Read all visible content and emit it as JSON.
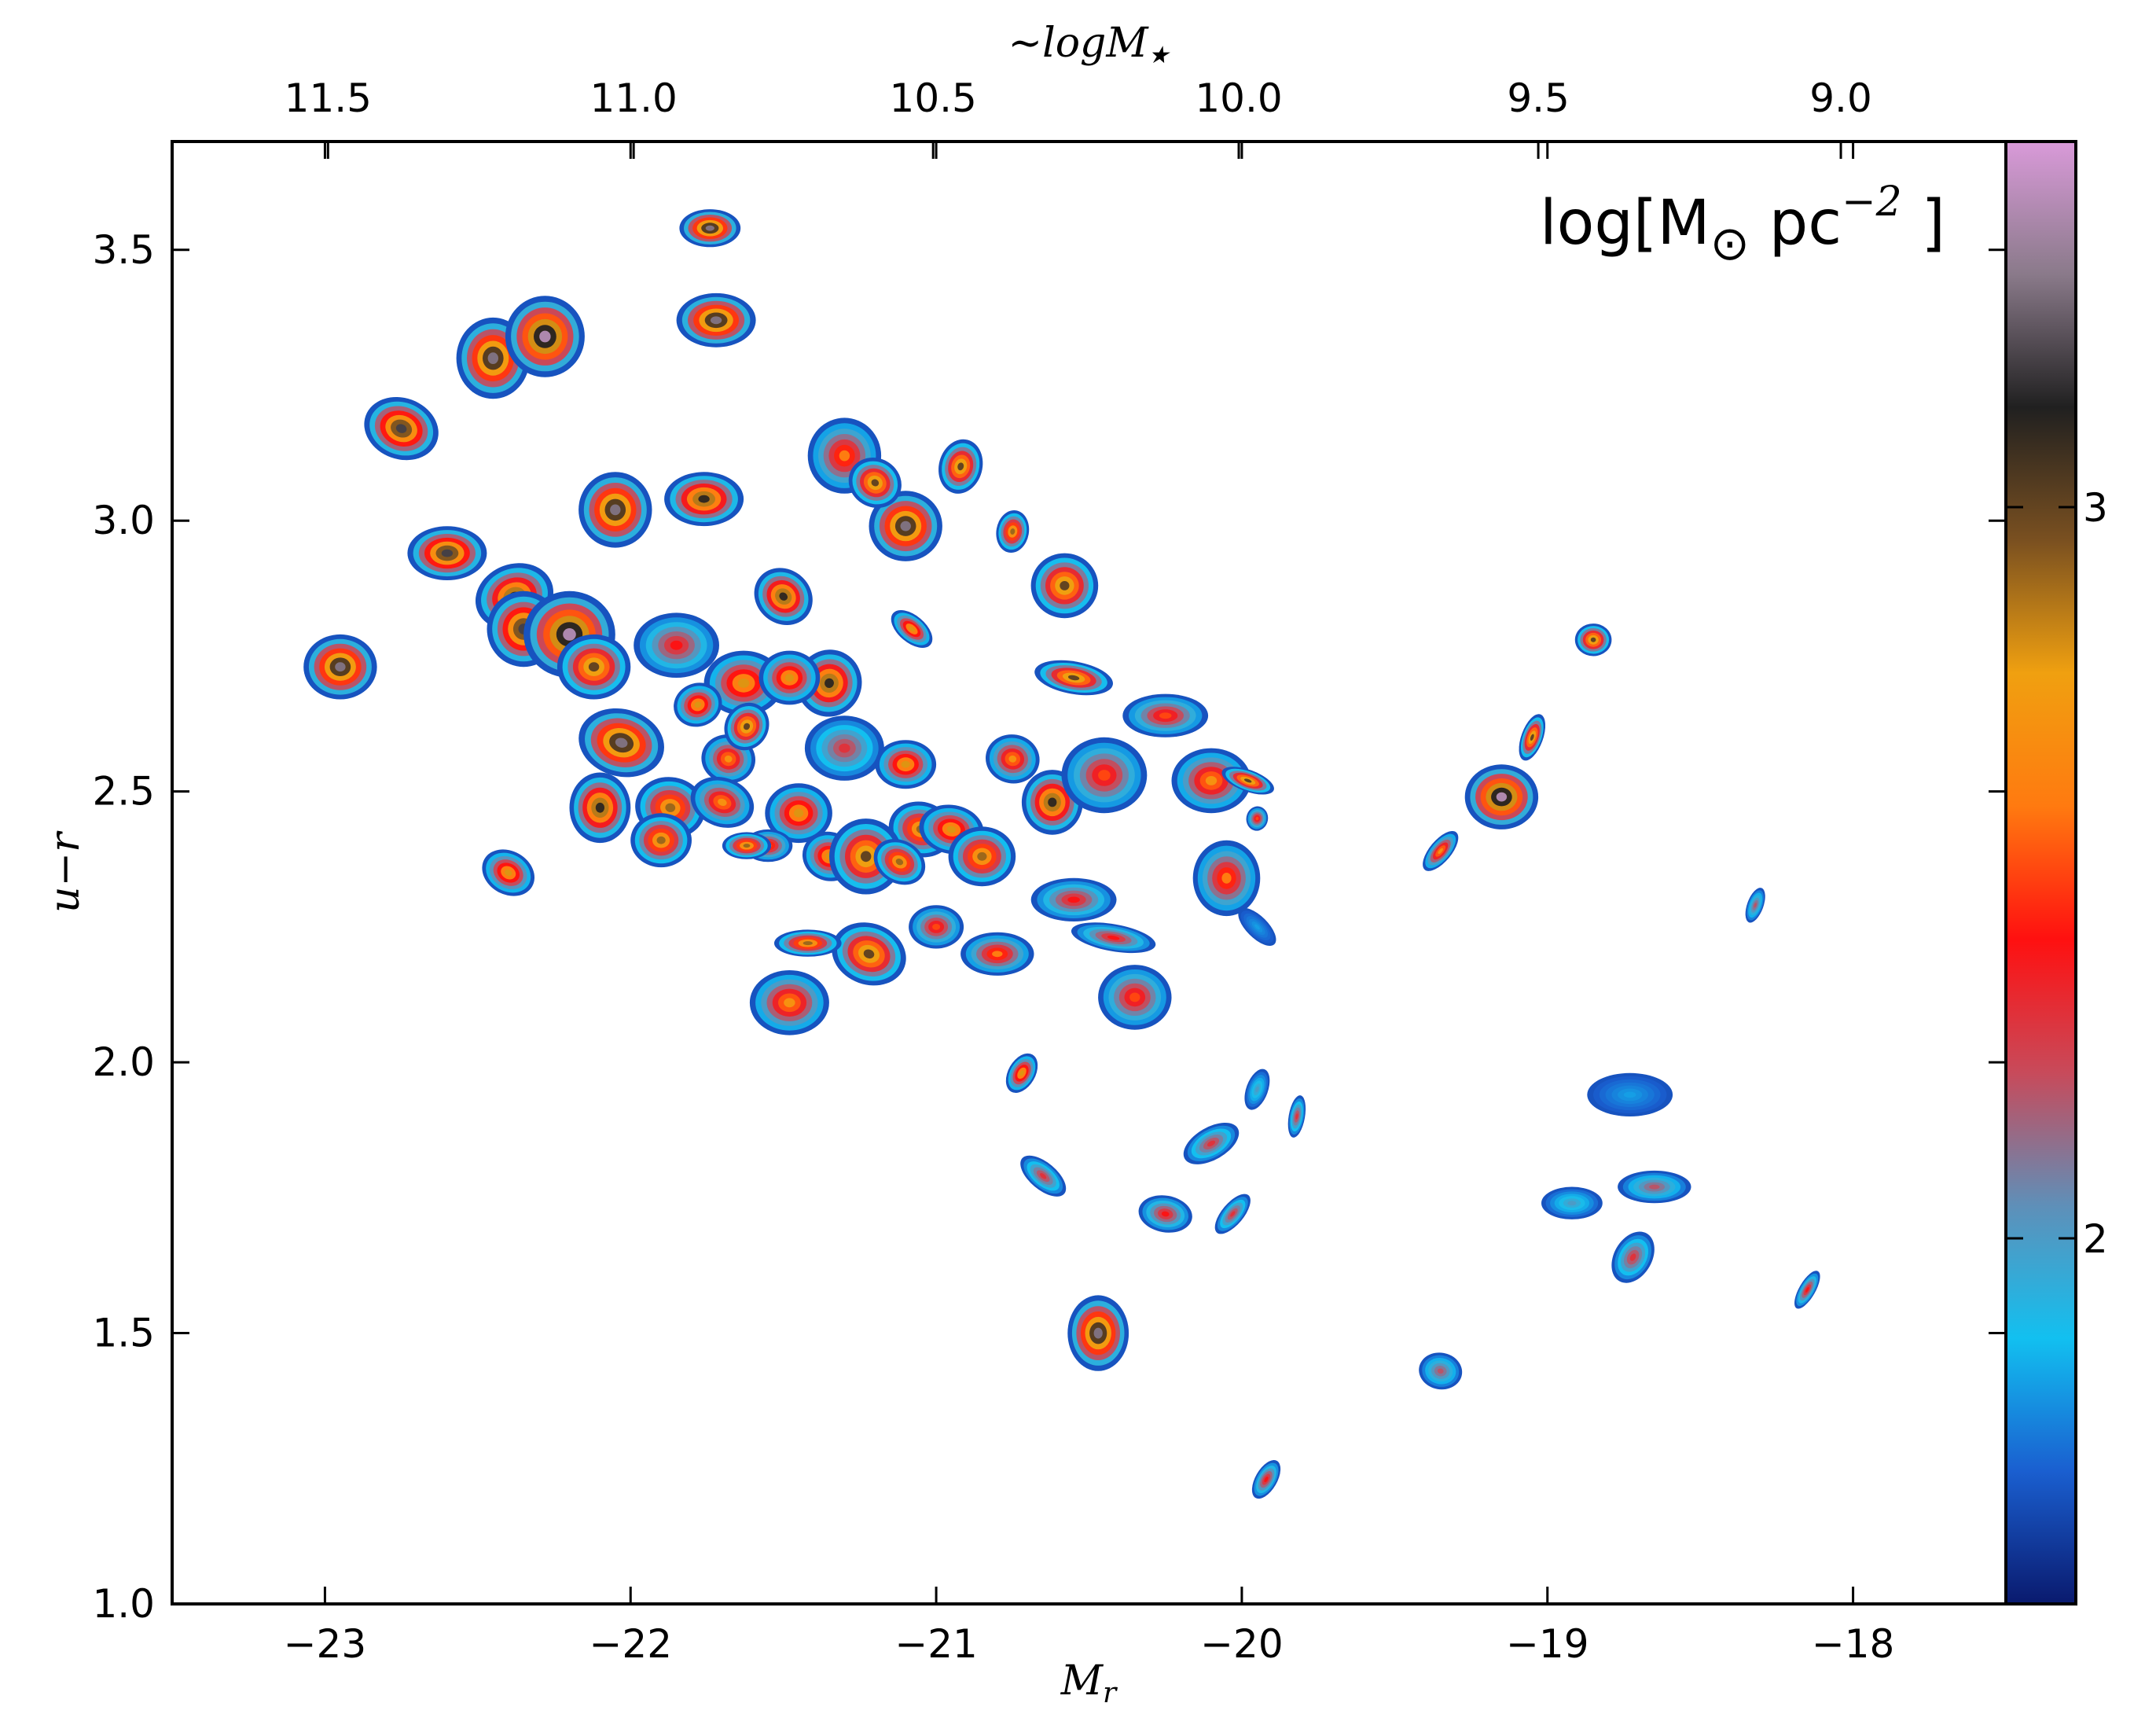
{
  "chart_data": {
    "type": "scatter",
    "title": "",
    "xlabel": "M_r",
    "ylabel": "u−r",
    "top_xlabel": "~logM★",
    "xlim": [
      -23.5,
      -17.5
    ],
    "ylim": [
      1.0,
      3.7
    ],
    "x_inverted": false,
    "xticks": [
      {
        "value": -23,
        "label": "−23"
      },
      {
        "value": -22,
        "label": "−22"
      },
      {
        "value": -21,
        "label": "−21"
      },
      {
        "value": -20,
        "label": "−20"
      },
      {
        "value": -19,
        "label": "−19"
      },
      {
        "value": -18,
        "label": "−18"
      }
    ],
    "yticks": [
      {
        "value": 1.0,
        "label": "1.0"
      },
      {
        "value": 1.5,
        "label": "1.5"
      },
      {
        "value": 2.0,
        "label": "2.0"
      },
      {
        "value": 2.5,
        "label": "2.5"
      },
      {
        "value": 3.0,
        "label": "3.0"
      },
      {
        "value": 3.5,
        "label": "3.5"
      }
    ],
    "top_xticks": [
      {
        "value": -22.99,
        "label": "11.5"
      },
      {
        "value": -21.99,
        "label": "11.0"
      },
      {
        "value": -21.01,
        "label": "10.5"
      },
      {
        "value": -20.01,
        "label": "10.0"
      },
      {
        "value": -19.03,
        "label": "9.5"
      },
      {
        "value": -18.04,
        "label": "9.0"
      }
    ],
    "colorbar": {
      "label": "log[M⊙ pc⁻²]",
      "range": [
        1.5,
        3.5
      ],
      "ticks": [
        {
          "value": 2,
          "label": "2"
        },
        {
          "value": 3,
          "label": "3"
        }
      ],
      "colormap_stops": [
        "#0a1a6e",
        "#1a5fd0",
        "#12c0f0",
        "#5f8fb8",
        "#c84a5a",
        "#ff1010",
        "#ff7a10",
        "#f0a010",
        "#7a5020",
        "#202020",
        "#8a7a8a",
        "#d99ad9"
      ]
    },
    "points": [
      {
        "x": -22.95,
        "y": 2.73,
        "peak": 3.3,
        "w": 0.24,
        "h": 0.12,
        "rot": 0
      },
      {
        "x": -22.75,
        "y": 3.17,
        "peak": 3.2,
        "w": 0.2,
        "h": 0.14,
        "rot": 70
      },
      {
        "x": -22.6,
        "y": 2.94,
        "peak": 3.2,
        "w": 0.26,
        "h": 0.1,
        "rot": 0
      },
      {
        "x": -22.45,
        "y": 3.3,
        "peak": 3.3,
        "w": 0.24,
        "h": 0.15,
        "rot": 0
      },
      {
        "x": -22.28,
        "y": 3.34,
        "peak": 3.4,
        "w": 0.26,
        "h": 0.15,
        "rot": 0
      },
      {
        "x": -22.38,
        "y": 2.86,
        "peak": 3.1,
        "w": 0.26,
        "h": 0.12,
        "rot": 20
      },
      {
        "x": -22.35,
        "y": 2.8,
        "peak": 3.2,
        "w": 0.24,
        "h": 0.14,
        "rot": 0
      },
      {
        "x": -22.2,
        "y": 2.79,
        "peak": 3.4,
        "w": 0.3,
        "h": 0.16,
        "rot": 0
      },
      {
        "x": -22.05,
        "y": 3.02,
        "peak": 3.3,
        "w": 0.24,
        "h": 0.14,
        "rot": 0
      },
      {
        "x": -21.76,
        "y": 3.04,
        "peak": 3.1,
        "w": 0.26,
        "h": 0.1,
        "rot": 0
      },
      {
        "x": -22.12,
        "y": 2.73,
        "peak": 3.0,
        "w": 0.24,
        "h": 0.12,
        "rot": 0
      },
      {
        "x": -22.03,
        "y": 2.59,
        "peak": 3.3,
        "w": 0.22,
        "h": 0.16,
        "rot": 75
      },
      {
        "x": -22.1,
        "y": 2.47,
        "peak": 3.1,
        "w": 0.2,
        "h": 0.13,
        "rot": 0
      },
      {
        "x": -21.85,
        "y": 2.77,
        "peak": 2.4,
        "w": 0.28,
        "h": 0.12,
        "rot": 0
      },
      {
        "x": -21.87,
        "y": 2.47,
        "peak": 2.9,
        "w": 0.2,
        "h": 0.13,
        "rot": 80
      },
      {
        "x": -21.63,
        "y": 2.7,
        "peak": 2.8,
        "w": 0.26,
        "h": 0.12,
        "rot": 0
      },
      {
        "x": -21.5,
        "y": 2.86,
        "peak": 3.1,
        "w": 0.2,
        "h": 0.1,
        "rot": -40
      },
      {
        "x": -21.35,
        "y": 2.7,
        "peak": 3.1,
        "w": 0.22,
        "h": 0.12,
        "rot": 70
      },
      {
        "x": -21.48,
        "y": 2.71,
        "peak": 2.8,
        "w": 0.2,
        "h": 0.1,
        "rot": 0
      },
      {
        "x": -21.3,
        "y": 3.12,
        "peak": 2.6,
        "w": 0.24,
        "h": 0.14,
        "rot": 0
      },
      {
        "x": -21.1,
        "y": 2.99,
        "peak": 3.3,
        "w": 0.24,
        "h": 0.13,
        "rot": 0
      },
      {
        "x": -21.2,
        "y": 3.07,
        "peak": 3.0,
        "w": 0.16,
        "h": 0.1,
        "rot": 60
      },
      {
        "x": -20.92,
        "y": 3.1,
        "peak": 3.0,
        "w": 0.18,
        "h": 0.08,
        "rot": 75
      },
      {
        "x": -20.75,
        "y": 2.98,
        "peak": 2.9,
        "w": 0.14,
        "h": 0.06,
        "rot": 80
      },
      {
        "x": -20.58,
        "y": 2.88,
        "peak": 3.0,
        "w": 0.22,
        "h": 0.12,
        "rot": 0
      },
      {
        "x": -21.08,
        "y": 2.8,
        "peak": 2.8,
        "w": 0.16,
        "h": 0.05,
        "rot": -40
      },
      {
        "x": -20.55,
        "y": 2.71,
        "peak": 3.0,
        "w": 0.26,
        "h": 0.06,
        "rot": -10
      },
      {
        "x": -20.25,
        "y": 2.64,
        "peak": 2.5,
        "w": 0.28,
        "h": 0.08,
        "rot": 0
      },
      {
        "x": -21.68,
        "y": 2.56,
        "peak": 2.7,
        "w": 0.16,
        "h": 0.1,
        "rot": 80
      },
      {
        "x": -21.45,
        "y": 2.46,
        "peak": 2.8,
        "w": 0.22,
        "h": 0.11,
        "rot": 0
      },
      {
        "x": -21.3,
        "y": 2.58,
        "peak": 2.3,
        "w": 0.26,
        "h": 0.12,
        "rot": 0
      },
      {
        "x": -21.1,
        "y": 2.55,
        "peak": 2.8,
        "w": 0.2,
        "h": 0.09,
        "rot": 0
      },
      {
        "x": -21.05,
        "y": 2.43,
        "peak": 2.9,
        "w": 0.18,
        "h": 0.12,
        "rot": 75
      },
      {
        "x": -21.55,
        "y": 2.4,
        "peak": 2.6,
        "w": 0.16,
        "h": 0.06,
        "rot": 0
      },
      {
        "x": -21.9,
        "y": 2.41,
        "peak": 2.9,
        "w": 0.2,
        "h": 0.1,
        "rot": 0
      },
      {
        "x": -21.7,
        "y": 2.48,
        "peak": 2.7,
        "w": 0.16,
        "h": 0.12,
        "rot": 70
      },
      {
        "x": -21.35,
        "y": 2.38,
        "peak": 2.8,
        "w": 0.16,
        "h": 0.1,
        "rot": 70
      },
      {
        "x": -21.23,
        "y": 2.38,
        "peak": 3.0,
        "w": 0.24,
        "h": 0.14,
        "rot": 0
      },
      {
        "x": -20.95,
        "y": 2.43,
        "peak": 2.8,
        "w": 0.16,
        "h": 0.12,
        "rot": 80
      },
      {
        "x": -20.85,
        "y": 2.38,
        "peak": 2.9,
        "w": 0.22,
        "h": 0.11,
        "rot": 0
      },
      {
        "x": -20.75,
        "y": 2.56,
        "peak": 2.7,
        "w": 0.16,
        "h": 0.1,
        "rot": 80
      },
      {
        "x": -20.62,
        "y": 2.48,
        "peak": 3.1,
        "w": 0.2,
        "h": 0.12,
        "rot": 0
      },
      {
        "x": -20.45,
        "y": 2.53,
        "peak": 2.5,
        "w": 0.28,
        "h": 0.14,
        "rot": 0
      },
      {
        "x": -20.1,
        "y": 2.52,
        "peak": 2.7,
        "w": 0.26,
        "h": 0.12,
        "rot": 0
      },
      {
        "x": -19.98,
        "y": 2.52,
        "peak": 3.0,
        "w": 0.18,
        "h": 0.04,
        "rot": -20
      },
      {
        "x": -19.95,
        "y": 2.45,
        "peak": 2.5,
        "w": 0.08,
        "h": 0.04,
        "rot": 80
      },
      {
        "x": -20.05,
        "y": 2.34,
        "peak": 2.6,
        "w": 0.22,
        "h": 0.14,
        "rot": 0
      },
      {
        "x": -19.95,
        "y": 2.25,
        "peak": 1.8,
        "w": 0.16,
        "h": 0.04,
        "rot": -45
      },
      {
        "x": -20.55,
        "y": 2.3,
        "peak": 2.4,
        "w": 0.28,
        "h": 0.08,
        "rot": 0
      },
      {
        "x": -20.42,
        "y": 2.23,
        "peak": 2.4,
        "w": 0.28,
        "h": 0.05,
        "rot": -10
      },
      {
        "x": -20.35,
        "y": 2.12,
        "peak": 2.5,
        "w": 0.24,
        "h": 0.12,
        "rot": 0
      },
      {
        "x": -20.8,
        "y": 2.2,
        "peak": 2.6,
        "w": 0.24,
        "h": 0.08,
        "rot": 0
      },
      {
        "x": -21.0,
        "y": 2.25,
        "peak": 2.5,
        "w": 0.18,
        "h": 0.08,
        "rot": 0
      },
      {
        "x": -21.22,
        "y": 2.2,
        "peak": 3.0,
        "w": 0.2,
        "h": 0.14,
        "rot": 70
      },
      {
        "x": -21.42,
        "y": 2.22,
        "peak": 2.9,
        "w": 0.22,
        "h": 0.05,
        "rot": 0
      },
      {
        "x": -21.48,
        "y": 2.11,
        "peak": 2.7,
        "w": 0.26,
        "h": 0.12,
        "rot": 0
      },
      {
        "x": -21.62,
        "y": 2.4,
        "peak": 2.9,
        "w": 0.16,
        "h": 0.05,
        "rot": 0
      },
      {
        "x": -22.4,
        "y": 2.35,
        "peak": 2.8,
        "w": 0.18,
        "h": 0.08,
        "rot": -30
      },
      {
        "x": -21.12,
        "y": 2.37,
        "peak": 2.9,
        "w": 0.14,
        "h": 0.1,
        "rot": 60
      },
      {
        "x": -20.72,
        "y": 1.98,
        "peak": 2.8,
        "w": 0.14,
        "h": 0.05,
        "rot": 60
      },
      {
        "x": -20.65,
        "y": 1.79,
        "peak": 2.3,
        "w": 0.18,
        "h": 0.05,
        "rot": -40
      },
      {
        "x": -20.47,
        "y": 1.5,
        "peak": 3.3,
        "w": 0.2,
        "h": 0.14,
        "rot": 0
      },
      {
        "x": -20.1,
        "y": 1.85,
        "peak": 2.3,
        "w": 0.2,
        "h": 0.06,
        "rot": 30
      },
      {
        "x": -19.95,
        "y": 1.95,
        "peak": 2.0,
        "w": 0.14,
        "h": 0.04,
        "rot": 70
      },
      {
        "x": -19.82,
        "y": 1.9,
        "peak": 2.3,
        "w": 0.14,
        "h": 0.03,
        "rot": 80
      },
      {
        "x": -20.25,
        "y": 1.72,
        "peak": 2.4,
        "w": 0.12,
        "h": 0.1,
        "rot": 80
      },
      {
        "x": -20.03,
        "y": 1.72,
        "peak": 2.3,
        "w": 0.16,
        "h": 0.04,
        "rot": 50
      },
      {
        "x": -19.92,
        "y": 1.23,
        "peak": 2.4,
        "w": 0.14,
        "h": 0.04,
        "rot": 60
      },
      {
        "x": -19.35,
        "y": 1.43,
        "peak": 2.2,
        "w": 0.12,
        "h": 0.08,
        "rot": 80
      },
      {
        "x": -19.35,
        "y": 2.39,
        "peak": 2.7,
        "w": 0.16,
        "h": 0.04,
        "rot": 50
      },
      {
        "x": -19.15,
        "y": 2.49,
        "peak": 3.4,
        "w": 0.24,
        "h": 0.12,
        "rot": 0
      },
      {
        "x": -19.05,
        "y": 2.6,
        "peak": 3.0,
        "w": 0.16,
        "h": 0.04,
        "rot": 70
      },
      {
        "x": -18.85,
        "y": 2.78,
        "peak": 3.0,
        "w": 0.12,
        "h": 0.06,
        "rot": 0
      },
      {
        "x": -18.32,
        "y": 2.29,
        "peak": 2.2,
        "w": 0.12,
        "h": 0.03,
        "rot": 70
      },
      {
        "x": -18.73,
        "y": 1.94,
        "peak": 1.8,
        "w": 0.28,
        "h": 0.08,
        "rot": 0
      },
      {
        "x": -18.92,
        "y": 1.74,
        "peak": 2.0,
        "w": 0.2,
        "h": 0.06,
        "rot": 0
      },
      {
        "x": -18.65,
        "y": 1.77,
        "peak": 2.2,
        "w": 0.24,
        "h": 0.06,
        "rot": 0
      },
      {
        "x": -18.72,
        "y": 1.64,
        "peak": 2.3,
        "w": 0.18,
        "h": 0.07,
        "rot": 60
      },
      {
        "x": -18.15,
        "y": 1.58,
        "peak": 2.4,
        "w": 0.14,
        "h": 0.03,
        "rot": 60
      },
      {
        "x": -21.74,
        "y": 3.54,
        "peak": 3.3,
        "w": 0.2,
        "h": 0.07,
        "rot": 0
      },
      {
        "x": -21.72,
        "y": 3.37,
        "peak": 3.3,
        "w": 0.26,
        "h": 0.1,
        "rot": 0
      },
      {
        "x": -21.62,
        "y": 2.62,
        "peak": 3.0,
        "w": 0.16,
        "h": 0.08,
        "rot": 60
      },
      {
        "x": -21.78,
        "y": 2.66,
        "peak": 2.8,
        "w": 0.16,
        "h": 0.08,
        "rot": 20
      }
    ]
  }
}
